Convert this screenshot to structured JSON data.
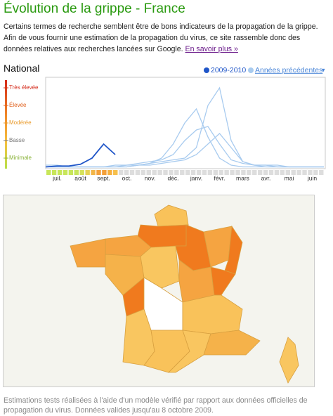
{
  "header": {
    "title": "Évolution de la grippe - France",
    "intro": "Certains termes de recherche semblent être de bons indicateurs de la propagation de la grippe. Afin de vous fournir une estimation de la propagation du virus, ce site rassemble donc des données relatives aux recherches lancées sur Google.",
    "link": "En savoir plus »"
  },
  "section": "National",
  "chart_data": {
    "type": "line",
    "x": [
      0,
      0.5,
      1,
      1.5,
      2,
      2.5,
      3,
      3.5,
      4,
      4.5,
      5,
      5.5,
      6,
      6.5,
      7,
      7.5,
      8,
      8.5,
      9,
      9.5,
      10,
      10.5,
      11,
      11.5,
      12
    ],
    "xlim": [
      0,
      12
    ],
    "xticks": [
      {
        "value": 0.5,
        "label": "juil."
      },
      {
        "value": 1.5,
        "label": "août"
      },
      {
        "value": 2.5,
        "label": "sept."
      },
      {
        "value": 3.5,
        "label": "oct."
      },
      {
        "value": 4.5,
        "label": "nov."
      },
      {
        "value": 5.5,
        "label": "déc."
      },
      {
        "value": 6.5,
        "label": "janv."
      },
      {
        "value": 7.5,
        "label": "févr."
      },
      {
        "value": 8.5,
        "label": "mars"
      },
      {
        "value": 9.5,
        "label": "avr."
      },
      {
        "value": 10.5,
        "label": "mai"
      },
      {
        "value": 11.5,
        "label": "juin"
      }
    ],
    "ylim": [
      0.4,
      5.6
    ],
    "yticks": [
      {
        "value": 5,
        "label": "Très élevée",
        "color": "#d42a1a"
      },
      {
        "value": 4,
        "label": "Élevée",
        "color": "#e0601c"
      },
      {
        "value": 3,
        "label": "Modérée",
        "color": "#e99a2a"
      },
      {
        "value": 2,
        "label": "Basse",
        "color": "#777777"
      },
      {
        "value": 1,
        "label": "Minimale",
        "color": "#8ab33a"
      }
    ],
    "series": [
      {
        "name": "2009-2010",
        "color": "#1f55c8",
        "values": [
          0.5,
          0.55,
          0.55,
          0.65,
          1.0,
          1.8,
          1.2,
          null,
          null,
          null,
          null,
          null,
          null,
          null,
          null,
          null,
          null,
          null,
          null,
          null,
          null,
          null,
          null,
          null,
          null
        ]
      },
      {
        "name": "Années précédentes",
        "color": "#a8cbef",
        "values": [
          [
            0.5,
            0.5,
            0.5,
            0.5,
            0.5,
            0.5,
            0.5,
            0.5,
            0.6,
            0.7,
            1.0,
            1.8,
            3.0,
            3.8,
            2.2,
            1.0,
            0.6,
            0.5,
            0.5,
            0.5,
            0.5,
            0.5,
            0.5,
            0.5,
            0.5
          ],
          [
            0.6,
            0.6,
            0.5,
            0.5,
            0.5,
            0.5,
            0.5,
            0.6,
            0.6,
            0.7,
            0.8,
            0.9,
            1.0,
            1.6,
            4.0,
            5.0,
            2.0,
            0.8,
            0.6,
            0.5,
            0.5,
            0.5,
            0.5,
            0.5,
            0.5
          ],
          [
            0.5,
            0.5,
            0.5,
            0.5,
            0.5,
            0.5,
            0.6,
            0.6,
            0.7,
            0.8,
            0.9,
            1.2,
            2.0,
            2.6,
            2.8,
            1.8,
            0.9,
            0.7,
            0.6,
            0.6,
            0.5,
            0.5,
            0.5,
            0.5,
            0.5
          ],
          [
            0.5,
            0.5,
            0.5,
            0.5,
            0.5,
            0.5,
            0.5,
            0.5,
            0.6,
            0.6,
            0.7,
            0.8,
            0.9,
            1.2,
            1.8,
            2.4,
            1.6,
            0.8,
            0.6,
            0.6,
            0.6,
            0.5,
            0.5,
            0.5,
            0.5
          ]
        ]
      }
    ],
    "week_colors": [
      "#c8e65a",
      "#c8e65a",
      "#c8e65a",
      "#c8e65a",
      "#c8e65a",
      "#c8e65a",
      "#d6e25a",
      "#e6d255",
      "#f2b548",
      "#f4a03a",
      "#f4a03a",
      "#f6b040",
      "#f7c04c"
    ],
    "empty_color": "#dddddd",
    "week_count": 50
  },
  "footer": "Estimations tests réalisées à l'aide d'un modèle vérifié par rapport aux données officielles de propagation du virus. Données valides jusqu'au 8 octobre 2009."
}
